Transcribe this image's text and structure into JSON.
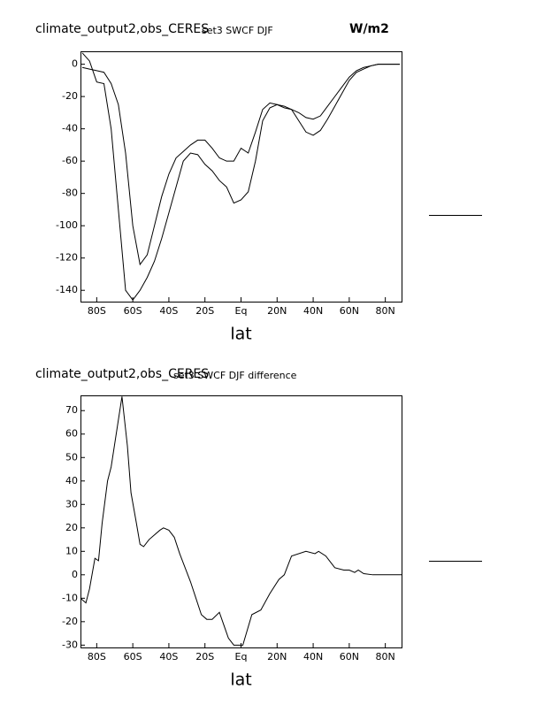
{
  "chart_data": [
    {
      "type": "line",
      "title": "climate_output2,obs_CERES",
      "subtitle": "set3 SWCF DJF",
      "units": "W/m2",
      "xlabel": "lat",
      "x": [
        -88,
        -84,
        -80,
        -76,
        -72,
        -68,
        -64,
        -60,
        -56,
        -52,
        -48,
        -44,
        -40,
        -36,
        -32,
        -28,
        -24,
        -20,
        -16,
        -12,
        -8,
        -4,
        0,
        4,
        8,
        12,
        16,
        20,
        24,
        28,
        32,
        36,
        40,
        44,
        48,
        52,
        56,
        60,
        64,
        68,
        72,
        76,
        80,
        84,
        88
      ],
      "series": [
        {
          "color": "#000000",
          "values": [
            7,
            2,
            -11,
            -12,
            -40,
            -90,
            -140,
            -146,
            -140,
            -132,
            -122,
            -108,
            -92,
            -76,
            -60,
            -55,
            -56,
            -62,
            -66,
            -72,
            -76,
            -86,
            -84,
            -79,
            -60,
            -35,
            -27,
            -25,
            -26,
            -28,
            -35,
            -42,
            -44,
            -41,
            -34,
            -26,
            -18,
            -10,
            -5,
            -3,
            -1,
            0,
            0,
            0,
            0
          ]
        },
        {
          "color": "#000000",
          "values": [
            -2,
            -3,
            -4,
            -5,
            -12,
            -25,
            -55,
            -100,
            -124,
            -118,
            -100,
            -82,
            -68,
            -58,
            -54,
            -50,
            -47,
            -47,
            -52,
            -58,
            -60,
            -60,
            -52,
            -55,
            -42,
            -28,
            -24,
            -25,
            -27,
            -28,
            -30,
            -33,
            -34,
            -32,
            -26,
            -20,
            -14,
            -8,
            -4,
            -2,
            -1,
            0,
            0,
            0,
            0
          ]
        }
      ],
      "xlim": [
        -89,
        89
      ],
      "xticks": [
        {
          "value": -80,
          "label": "80S"
        },
        {
          "value": -60,
          "label": "60S"
        },
        {
          "value": -40,
          "label": "40S"
        },
        {
          "value": -20,
          "label": "20S"
        },
        {
          "value": 0,
          "label": "Eq"
        },
        {
          "value": 20,
          "label": "20N"
        },
        {
          "value": 40,
          "label": "40N"
        },
        {
          "value": 60,
          "label": "60N"
        },
        {
          "value": 80,
          "label": "80N"
        }
      ],
      "ylim": [
        -147,
        8
      ],
      "yticks": [
        0,
        -20,
        -40,
        -60,
        -80,
        -100,
        -120,
        -140
      ]
    },
    {
      "type": "line",
      "title": "climate_output2,obs_CERES",
      "subtitle": "set3 SWCF DJF difference",
      "xlabel": "lat",
      "x": [
        -89,
        -86,
        -84,
        -81,
        -79,
        -77,
        -74,
        -72,
        -66,
        -63,
        -61,
        -58,
        -56,
        -54,
        -51,
        -45,
        -43,
        -40,
        -37,
        -34,
        -28,
        -25,
        -22,
        -19,
        -16,
        -12,
        -7,
        -4,
        1,
        6,
        11,
        16,
        21,
        24,
        28,
        36,
        41,
        43,
        47,
        52,
        57,
        60,
        63,
        65,
        68,
        73,
        89
      ],
      "series": [
        {
          "color": "#000000",
          "values": [
            -10,
            -12,
            -6,
            7,
            6,
            22,
            40,
            46,
            76,
            55,
            35,
            22,
            13,
            12,
            15,
            19,
            20,
            19,
            16,
            9,
            -3,
            -10,
            -17,
            -19,
            -19,
            -16,
            -27,
            -30,
            -30,
            -17,
            -15,
            -8,
            -2,
            0,
            8,
            10,
            9,
            10,
            8,
            3,
            2,
            2,
            1,
            2,
            0.5,
            0,
            0
          ]
        }
      ],
      "xlim": [
        -89,
        89
      ],
      "xticks": [
        {
          "value": -80,
          "label": "80S"
        },
        {
          "value": -60,
          "label": "60S"
        },
        {
          "value": -40,
          "label": "40S"
        },
        {
          "value": -20,
          "label": "20S"
        },
        {
          "value": 0,
          "label": "Eq"
        },
        {
          "value": 20,
          "label": "20N"
        },
        {
          "value": 40,
          "label": "40N"
        },
        {
          "value": 60,
          "label": "60N"
        },
        {
          "value": 80,
          "label": "80N"
        }
      ],
      "ylim": [
        -31,
        76.5
      ],
      "yticks": [
        70,
        60,
        50,
        40,
        30,
        20,
        10,
        0,
        -10,
        -20,
        -30
      ]
    }
  ]
}
